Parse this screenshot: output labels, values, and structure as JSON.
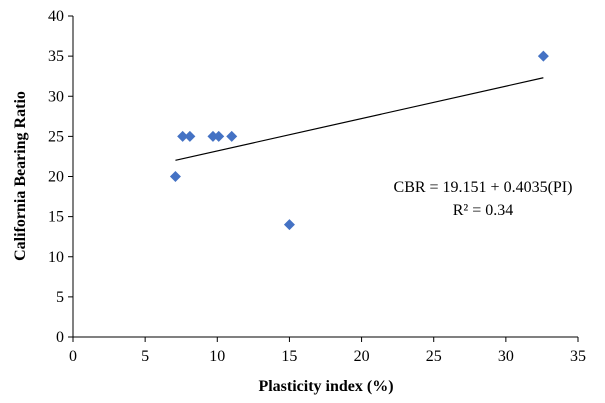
{
  "chart_data": {
    "type": "scatter",
    "xlabel": "Plasticity index (%)",
    "ylabel": "California Bearing Ratio",
    "xlim": [
      0,
      35
    ],
    "ylim": [
      0,
      40
    ],
    "x_ticks": [
      0,
      5,
      10,
      15,
      20,
      25,
      30,
      35
    ],
    "y_ticks": [
      0,
      5,
      10,
      15,
      20,
      25,
      30,
      35,
      40
    ],
    "grid": false,
    "marker_color": "#4472C4",
    "marker_shape": "diamond",
    "series": [
      {
        "points": [
          {
            "x": 7.1,
            "y": 20
          },
          {
            "x": 7.6,
            "y": 25
          },
          {
            "x": 8.1,
            "y": 25
          },
          {
            "x": 9.7,
            "y": 25
          },
          {
            "x": 10.1,
            "y": 25
          },
          {
            "x": 11.0,
            "y": 25
          },
          {
            "x": 15.0,
            "y": 14
          },
          {
            "x": 32.6,
            "y": 35
          }
        ]
      }
    ],
    "trendline": {
      "intercept": 19.151,
      "slope": 0.4035,
      "x_range": [
        7.1,
        32.6
      ]
    },
    "annotations": {
      "equation": "CBR = 19.151 + 0.4035(PI)",
      "r_squared": "R² = 0.34"
    }
  }
}
